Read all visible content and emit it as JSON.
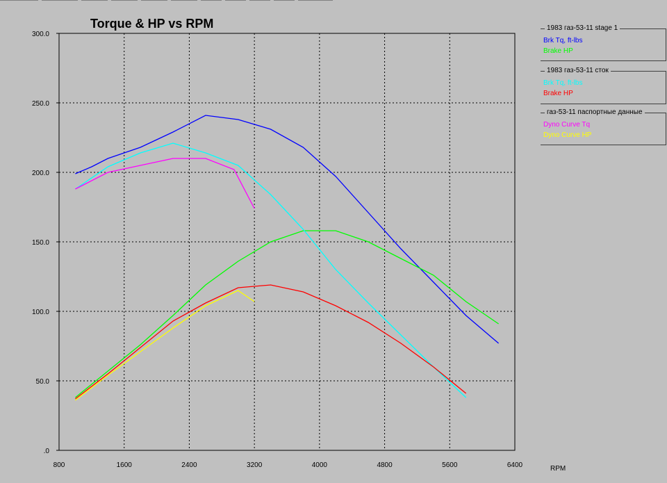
{
  "chart_data": {
    "type": "line",
    "title": "Torque & HP vs RPM",
    "xlabel": "RPM",
    "ylabel": "",
    "xlim": [
      800,
      6400
    ],
    "ylim": [
      0,
      300
    ],
    "x_ticks": [
      "800",
      "1600",
      "2400",
      "3200",
      "4000",
      "4800",
      "5600",
      "6400"
    ],
    "y_ticks": [
      ".0",
      "50.0",
      "100.0",
      "150.0",
      "200.0",
      "250.0",
      "300.0"
    ],
    "grid": true,
    "legend_position": "right",
    "series": [
      {
        "group": 0,
        "name": "Brk Tq, ft-lbs",
        "color": "#0000ff",
        "x": [
          1000,
          1200,
          1400,
          1800,
          2200,
          2600,
          3000,
          3400,
          3800,
          4200,
          4600,
          5000,
          5400,
          5800,
          6200
        ],
        "values": [
          199,
          204,
          210,
          218,
          229,
          241,
          238,
          231,
          218,
          197,
          171,
          145,
          121,
          97,
          77
        ]
      },
      {
        "group": 0,
        "name": "Brake HP",
        "color": "#00ff00",
        "x": [
          1000,
          1400,
          1800,
          2200,
          2600,
          3000,
          3400,
          3800,
          4200,
          4600,
          5000,
          5400,
          5800,
          6200
        ],
        "values": [
          38,
          57,
          76,
          97,
          119,
          136,
          150,
          158,
          158,
          150,
          138,
          126,
          107,
          91
        ]
      },
      {
        "group": 1,
        "name": "Brk Tq, ft-lbs",
        "color": "#00ffff",
        "x": [
          1000,
          1400,
          1800,
          2200,
          2600,
          3000,
          3400,
          3800,
          4200,
          4600,
          5000,
          5400,
          5800
        ],
        "values": [
          188,
          204,
          214,
          221,
          214,
          205,
          184,
          159,
          130,
          106,
          83,
          60,
          38
        ]
      },
      {
        "group": 1,
        "name": "Brake HP",
        "color": "#ff0000",
        "x": [
          1000,
          1400,
          1800,
          2200,
          2600,
          3000,
          3200,
          3400,
          3800,
          4200,
          4600,
          5000,
          5400,
          5800
        ],
        "values": [
          37,
          55,
          74,
          93,
          106,
          117,
          118,
          119,
          114,
          104,
          92,
          77,
          60,
          41
        ]
      },
      {
        "group": 2,
        "name": "Dyno Curve Tq",
        "color": "#ff00ff",
        "x": [
          1000,
          1400,
          1800,
          2200,
          2600,
          2950,
          3200
        ],
        "values": [
          188,
          200,
          205,
          210,
          210,
          202,
          174
        ]
      },
      {
        "group": 2,
        "name": "Dyno Curve HP",
        "color": "#ffff00",
        "x": [
          1000,
          1400,
          1800,
          2200,
          2600,
          3000,
          3200
        ],
        "values": [
          36,
          54,
          71,
          88,
          104,
          115,
          107
        ]
      }
    ],
    "legend_groups": [
      {
        "title": "1983 газ-53-11 stage 1"
      },
      {
        "title": "1983 газ-53-11 сток"
      },
      {
        "title": "газ-53-11 паспортные данные"
      }
    ]
  }
}
